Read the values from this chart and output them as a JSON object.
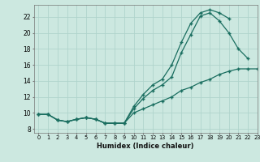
{
  "xlabel": "Humidex (Indice chaleur)",
  "bg_color": "#cce8e0",
  "grid_color": "#b0d4cc",
  "line_color": "#1a6e60",
  "xlim": [
    -0.5,
    23
  ],
  "ylim": [
    7.5,
    23.5
  ],
  "xticks": [
    0,
    1,
    2,
    3,
    4,
    5,
    6,
    7,
    8,
    9,
    10,
    11,
    12,
    13,
    14,
    15,
    16,
    17,
    18,
    19,
    20,
    21,
    22,
    23
  ],
  "yticks": [
    8,
    10,
    12,
    14,
    16,
    18,
    20,
    22
  ],
  "line1_x": [
    0,
    1,
    2,
    3,
    4,
    5,
    6,
    7,
    8,
    9,
    10,
    11,
    12,
    13,
    14,
    15,
    16,
    17,
    18,
    19,
    20
  ],
  "line1_y": [
    9.8,
    9.8,
    9.1,
    8.9,
    9.2,
    9.4,
    9.2,
    8.7,
    8.7,
    8.7,
    10.8,
    12.3,
    13.5,
    14.2,
    16.0,
    18.8,
    21.2,
    22.5,
    22.9,
    22.5,
    21.8
  ],
  "line2_x": [
    0,
    1,
    2,
    3,
    4,
    5,
    6,
    7,
    8,
    9,
    10,
    11,
    12,
    13,
    14,
    15,
    16,
    17,
    18,
    19,
    20,
    21,
    22
  ],
  "line2_y": [
    9.8,
    9.8,
    9.1,
    8.9,
    9.2,
    9.4,
    9.2,
    8.7,
    8.7,
    8.7,
    10.5,
    11.8,
    12.8,
    13.5,
    14.5,
    17.5,
    19.8,
    22.1,
    22.5,
    21.5,
    20.0,
    18.0,
    16.8
  ],
  "line3_x": [
    0,
    1,
    2,
    3,
    4,
    5,
    6,
    7,
    8,
    9,
    10,
    11,
    12,
    13,
    14,
    15,
    16,
    17,
    18,
    19,
    20,
    21,
    22,
    23
  ],
  "line3_y": [
    9.8,
    9.8,
    9.1,
    8.9,
    9.2,
    9.4,
    9.2,
    8.7,
    8.7,
    8.7,
    10.0,
    10.5,
    11.0,
    11.5,
    12.0,
    12.8,
    13.2,
    13.8,
    14.2,
    14.8,
    15.2,
    15.5,
    15.5,
    15.5
  ]
}
